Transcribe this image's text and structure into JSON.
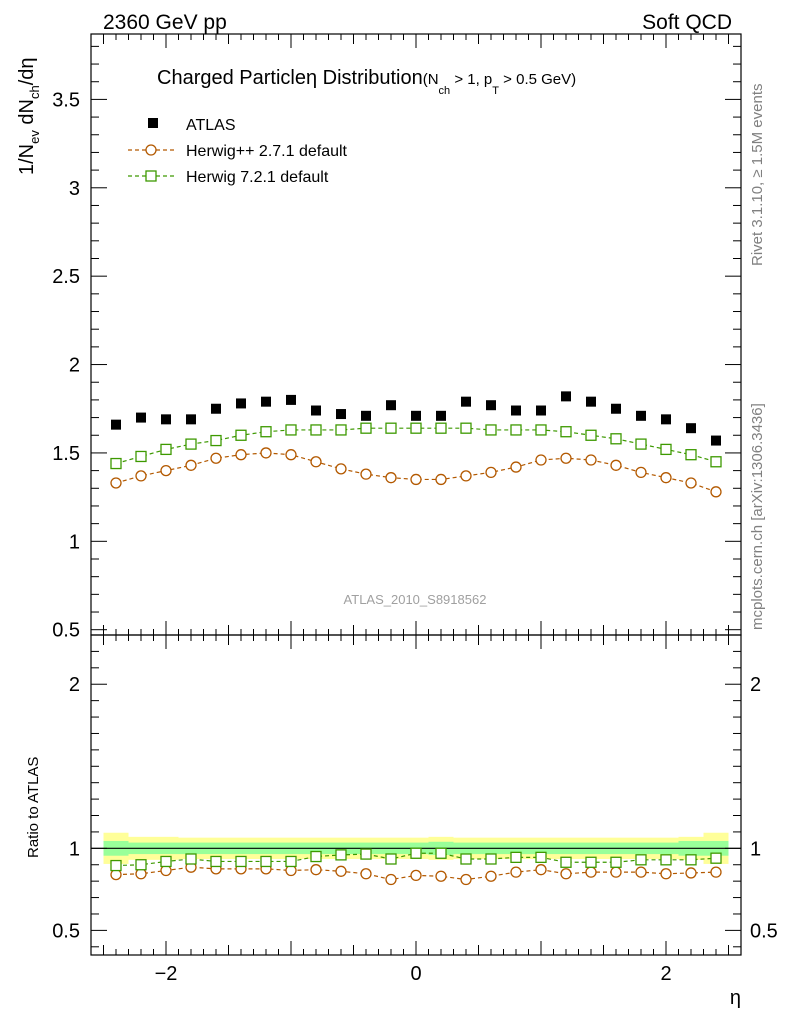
{
  "header": {
    "left": "2360 GeV pp",
    "right": "Soft QCD"
  },
  "side_text": {
    "rivet": "Rivet 3.1.10, ≥ 1.5M events",
    "mcplots": "mcplots.cern.ch [arXiv:1306.3436]"
  },
  "title": {
    "main": "Charged Particle",
    "eta": "η",
    "dist": " Distribution",
    "cuts": "(N",
    "cuts_sub": "ch",
    "cuts_mid": " > 1, p",
    "cuts_sub2": "T",
    "cuts_end": " > 0.5 GeV)"
  },
  "watermark": "ATLAS_2010_S8918562",
  "legend": [
    {
      "label": "ATLAS",
      "color": "#000000",
      "marker": "filled-square"
    },
    {
      "label": "Herwig++ 2.7.1 default",
      "color": "#b35900",
      "marker": "open-circle"
    },
    {
      "label": "Herwig 7.2.1 default",
      "color": "#3d9900",
      "marker": "open-square"
    }
  ],
  "y_axis_label": {
    "a": "1/N",
    "a_sub": "ev",
    "b": " dN",
    "b_sub": "ch",
    "c": "/dη"
  },
  "ratio_axis_label": "Ratio to ATLAS",
  "x_axis_label": "η",
  "chart_data": [
    {
      "type": "scatter",
      "panel": "main",
      "x": [
        -2.4,
        -2.2,
        -2.0,
        -1.8,
        -1.6,
        -1.4,
        -1.2,
        -1.0,
        -0.8,
        -0.6,
        -0.4,
        -0.2,
        0.0,
        0.2,
        0.4,
        0.6,
        0.8,
        1.0,
        1.2,
        1.4,
        1.6,
        1.8,
        2.0,
        2.2,
        2.4
      ],
      "xlim": [
        -2.6,
        2.6
      ],
      "ylim": [
        0.47,
        3.87
      ],
      "y_ticks": [
        0.5,
        1,
        1.5,
        2,
        2.5,
        3,
        3.5
      ],
      "x_ticks": [
        -2,
        0,
        2
      ],
      "series": [
        {
          "name": "ATLAS",
          "values": [
            1.66,
            1.7,
            1.69,
            1.69,
            1.75,
            1.78,
            1.79,
            1.8,
            1.74,
            1.72,
            1.71,
            1.77,
            1.71,
            1.71,
            1.79,
            1.77,
            1.74,
            1.74,
            1.82,
            1.79,
            1.75,
            1.71,
            1.69,
            1.64,
            1.57
          ]
        },
        {
          "name": "Herwig++ 2.7.1 default",
          "values": [
            1.33,
            1.37,
            1.4,
            1.43,
            1.47,
            1.49,
            1.5,
            1.49,
            1.45,
            1.41,
            1.38,
            1.36,
            1.35,
            1.35,
            1.37,
            1.39,
            1.42,
            1.46,
            1.47,
            1.46,
            1.43,
            1.39,
            1.36,
            1.33,
            1.28
          ]
        },
        {
          "name": "Herwig 7.2.1 default",
          "values": [
            1.44,
            1.48,
            1.52,
            1.55,
            1.57,
            1.6,
            1.62,
            1.63,
            1.63,
            1.63,
            1.64,
            1.64,
            1.64,
            1.64,
            1.64,
            1.63,
            1.63,
            1.63,
            1.62,
            1.6,
            1.58,
            1.55,
            1.52,
            1.49,
            1.45
          ]
        }
      ]
    },
    {
      "type": "scatter",
      "panel": "ratio",
      "x": [
        -2.4,
        -2.2,
        -2.0,
        -1.8,
        -1.6,
        -1.4,
        -1.2,
        -1.0,
        -0.8,
        -0.6,
        -0.4,
        -0.2,
        0.0,
        0.2,
        0.4,
        0.6,
        0.8,
        1.0,
        1.2,
        1.4,
        1.6,
        1.8,
        2.0,
        2.2,
        2.4
      ],
      "xlim": [
        -2.6,
        2.6
      ],
      "ylim": [
        0.35,
        2.3
      ],
      "y_ticks": [
        0.5,
        1,
        2
      ],
      "x_ticks": [
        -2,
        0,
        2
      ],
      "band_edges": [
        -2.5,
        -2.3,
        -2.1,
        -1.9,
        -1.7,
        -1.5,
        -1.3,
        -1.1,
        -0.9,
        -0.7,
        -0.5,
        -0.3,
        -0.1,
        0.1,
        0.3,
        0.5,
        0.7,
        0.9,
        1.1,
        1.3,
        1.5,
        1.7,
        1.9,
        2.1,
        2.3,
        2.5
      ],
      "band_inner": [
        0.045,
        0.035,
        0.035,
        0.035,
        0.035,
        0.035,
        0.035,
        0.035,
        0.035,
        0.035,
        0.035,
        0.035,
        0.035,
        0.04,
        0.035,
        0.035,
        0.035,
        0.035,
        0.035,
        0.035,
        0.035,
        0.035,
        0.035,
        0.045,
        0.045
      ],
      "band_outer": [
        0.095,
        0.07,
        0.07,
        0.065,
        0.065,
        0.065,
        0.065,
        0.065,
        0.065,
        0.065,
        0.065,
        0.065,
        0.065,
        0.07,
        0.065,
        0.065,
        0.065,
        0.065,
        0.065,
        0.065,
        0.065,
        0.065,
        0.065,
        0.07,
        0.095
      ],
      "band_inner_color": "#99ff99",
      "band_outer_color": "#ffff99",
      "series": [
        {
          "name": "Herwig++ 2.7.1 default",
          "values": [
            0.84,
            0.845,
            0.865,
            0.885,
            0.875,
            0.875,
            0.875,
            0.865,
            0.87,
            0.86,
            0.845,
            0.81,
            0.835,
            0.83,
            0.81,
            0.83,
            0.855,
            0.87,
            0.845,
            0.855,
            0.855,
            0.855,
            0.845,
            0.85,
            0.855
          ]
        },
        {
          "name": "Herwig 7.2.1 default",
          "values": [
            0.895,
            0.9,
            0.92,
            0.935,
            0.92,
            0.92,
            0.92,
            0.92,
            0.95,
            0.96,
            0.965,
            0.935,
            0.97,
            0.97,
            0.935,
            0.935,
            0.945,
            0.945,
            0.915,
            0.915,
            0.915,
            0.93,
            0.93,
            0.93,
            0.94
          ]
        }
      ]
    }
  ]
}
